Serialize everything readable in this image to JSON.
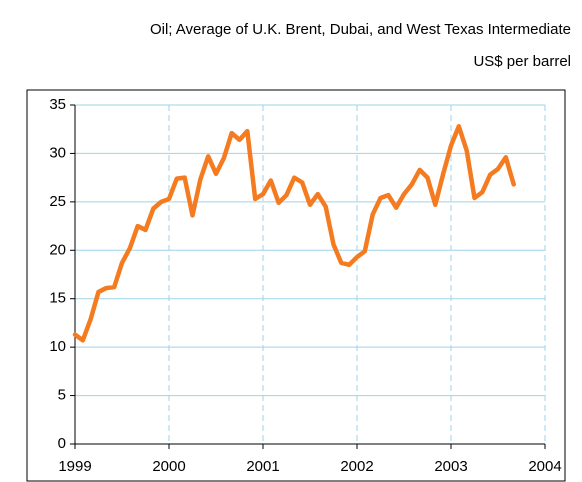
{
  "chart_data": {
    "type": "line",
    "title": "Oil; Average of U.K. Brent, Dubai, and West Texas Intermediate",
    "subtitle": "US$ per barrel",
    "x": [
      1999,
      1999.083,
      1999.167,
      1999.25,
      1999.333,
      1999.417,
      1999.5,
      1999.583,
      1999.667,
      1999.75,
      1999.833,
      1999.917,
      2000,
      2000.083,
      2000.167,
      2000.25,
      2000.333,
      2000.417,
      2000.5,
      2000.583,
      2000.667,
      2000.75,
      2000.833,
      2000.917,
      2001,
      2001.083,
      2001.167,
      2001.25,
      2001.333,
      2001.417,
      2001.5,
      2001.583,
      2001.667,
      2001.75,
      2001.833,
      2001.917,
      2002,
      2002.083,
      2002.167,
      2002.25,
      2002.333,
      2002.417,
      2002.5,
      2002.583,
      2002.667,
      2002.75,
      2002.833,
      2002.917,
      2003,
      2003.083,
      2003.167,
      2003.25,
      2003.333,
      2003.417,
      2003.5,
      2003.583,
      2003.667
    ],
    "series": [
      {
        "name": "Oil",
        "color": "#f47b20",
        "values": [
          11.3,
          10.7,
          12.9,
          15.7,
          16.1,
          16.2,
          18.7,
          20.2,
          22.5,
          22.1,
          24.3,
          25.0,
          25.3,
          27.4,
          27.5,
          23.6,
          27.3,
          29.7,
          27.9,
          29.5,
          32.1,
          31.4,
          32.3,
          25.3,
          25.8,
          27.2,
          24.9,
          25.7,
          27.5,
          27.0,
          24.7,
          25.8,
          24.5,
          20.6,
          18.7,
          18.5,
          19.3,
          19.9,
          23.7,
          25.4,
          25.7,
          24.4,
          25.8,
          26.8,
          28.3,
          27.5,
          24.7,
          27.9,
          30.8,
          32.8,
          30.3,
          25.4,
          26.0,
          27.8,
          28.4,
          29.6,
          26.8
        ]
      }
    ],
    "xlim": [
      1999,
      2004
    ],
    "xticks": [
      1999,
      2000,
      2001,
      2002,
      2003,
      2004
    ],
    "ylim": [
      0,
      35
    ],
    "yticks": [
      0,
      5,
      10,
      15,
      20,
      25,
      30,
      35
    ],
    "grid": true
  }
}
